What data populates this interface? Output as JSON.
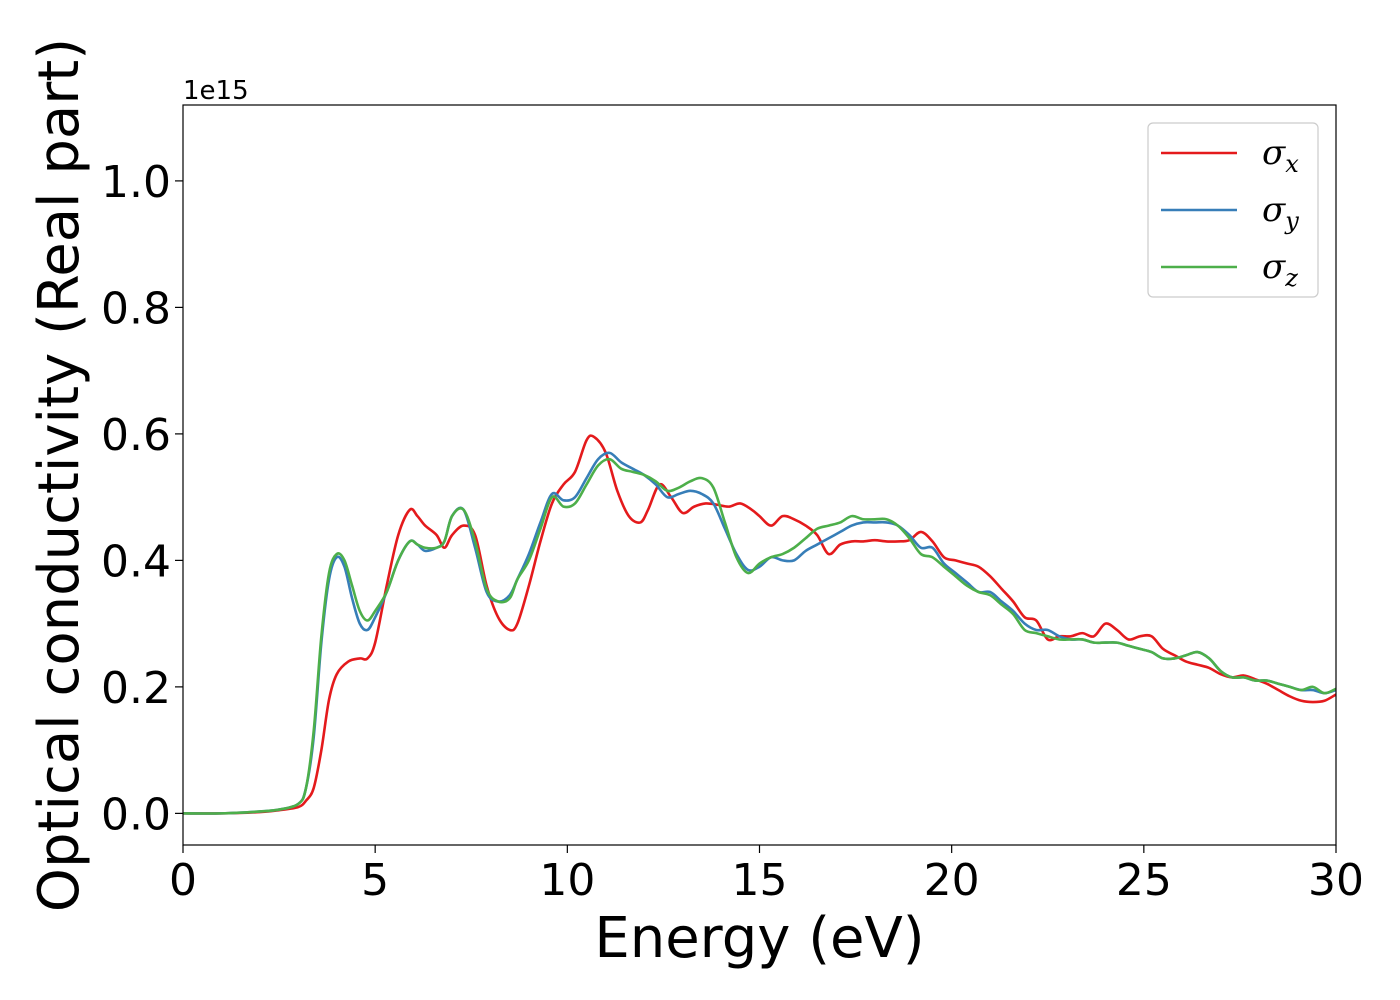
{
  "chart_data": {
    "type": "line",
    "title": "",
    "xlabel": "Energy (eV)",
    "ylabel": "Optical conductivity (Real part)",
    "y_offset_label": "1e15",
    "xlim": [
      0,
      30
    ],
    "ylim": [
      -0.05,
      1.12
    ],
    "xticks": [
      0,
      5,
      10,
      15,
      20,
      25,
      30
    ],
    "yticks": [
      0.0,
      0.2,
      0.4,
      0.6,
      0.8,
      1.0
    ],
    "xtick_labels": [
      "0",
      "5",
      "10",
      "15",
      "20",
      "25",
      "30"
    ],
    "ytick_labels": [
      "0.0",
      "0.2",
      "0.4",
      "0.6",
      "0.8",
      "1.0"
    ],
    "grid": false,
    "legend_position": "top-right",
    "series": [
      {
        "name": "σ",
        "sub": "x",
        "color": "#e41a1c",
        "x": [
          0,
          1,
          2,
          2.5,
          3,
          3.2,
          3.4,
          3.6,
          3.8,
          4.0,
          4.3,
          4.6,
          4.8,
          5.0,
          5.3,
          5.6,
          5.9,
          6.1,
          6.3,
          6.6,
          6.8,
          7.0,
          7.3,
          7.6,
          7.9,
          8.2,
          8.5,
          8.7,
          9.0,
          9.3,
          9.6,
          9.9,
          10.2,
          10.5,
          10.7,
          11.0,
          11.3,
          11.6,
          11.9,
          12.1,
          12.4,
          12.7,
          13.0,
          13.3,
          13.6,
          13.9,
          14.2,
          14.5,
          14.8,
          15.0,
          15.3,
          15.6,
          15.9,
          16.2,
          16.5,
          16.8,
          17.1,
          17.4,
          17.7,
          18.0,
          18.3,
          18.6,
          18.9,
          19.2,
          19.5,
          19.8,
          20.1,
          20.4,
          20.7,
          21.0,
          21.3,
          21.6,
          21.9,
          22.2,
          22.5,
          22.8,
          23.1,
          23.4,
          23.7,
          24.0,
          24.3,
          24.6,
          24.9,
          25.2,
          25.5,
          25.8,
          26.1,
          26.4,
          26.7,
          27.0,
          27.3,
          27.6,
          27.9,
          28.2,
          28.5,
          28.8,
          29.1,
          29.4,
          29.7,
          30.0
        ],
        "y": [
          0.0,
          0.0,
          0.002,
          0.005,
          0.01,
          0.02,
          0.04,
          0.1,
          0.18,
          0.22,
          0.24,
          0.245,
          0.245,
          0.27,
          0.36,
          0.44,
          0.48,
          0.47,
          0.455,
          0.44,
          0.42,
          0.44,
          0.455,
          0.44,
          0.36,
          0.31,
          0.29,
          0.3,
          0.36,
          0.43,
          0.49,
          0.52,
          0.54,
          0.59,
          0.595,
          0.57,
          0.51,
          0.47,
          0.46,
          0.48,
          0.52,
          0.5,
          0.475,
          0.485,
          0.49,
          0.488,
          0.485,
          0.49,
          0.48,
          0.47,
          0.455,
          0.47,
          0.465,
          0.455,
          0.44,
          0.41,
          0.425,
          0.43,
          0.43,
          0.432,
          0.43,
          0.43,
          0.432,
          0.445,
          0.43,
          0.405,
          0.4,
          0.395,
          0.39,
          0.375,
          0.355,
          0.335,
          0.31,
          0.305,
          0.275,
          0.28,
          0.28,
          0.285,
          0.28,
          0.3,
          0.29,
          0.275,
          0.28,
          0.28,
          0.26,
          0.25,
          0.24,
          0.235,
          0.23,
          0.22,
          0.215,
          0.218,
          0.212,
          0.205,
          0.195,
          0.185,
          0.178,
          0.176,
          0.178,
          0.188
        ]
      },
      {
        "name": "σ",
        "sub": "y",
        "color": "#377eb8",
        "x": [
          0,
          1,
          2,
          2.5,
          3,
          3.2,
          3.4,
          3.6,
          3.8,
          4.0,
          4.2,
          4.4,
          4.6,
          4.8,
          5.0,
          5.3,
          5.6,
          5.9,
          6.1,
          6.3,
          6.6,
          6.8,
          7.0,
          7.3,
          7.6,
          7.9,
          8.2,
          8.5,
          8.7,
          9.0,
          9.3,
          9.6,
          9.9,
          10.2,
          10.5,
          10.8,
          11.1,
          11.4,
          11.7,
          12.0,
          12.3,
          12.6,
          12.9,
          13.2,
          13.5,
          13.8,
          14.1,
          14.4,
          14.7,
          15.0,
          15.3,
          15.6,
          15.9,
          16.2,
          16.5,
          16.8,
          17.1,
          17.4,
          17.7,
          18.0,
          18.3,
          18.6,
          18.9,
          19.2,
          19.5,
          19.8,
          20.1,
          20.4,
          20.7,
          21.0,
          21.3,
          21.6,
          21.9,
          22.2,
          22.5,
          22.8,
          23.1,
          23.4,
          23.7,
          24.0,
          24.3,
          24.6,
          24.9,
          25.2,
          25.5,
          25.8,
          26.1,
          26.4,
          26.7,
          27.0,
          27.3,
          27.6,
          27.9,
          28.2,
          28.5,
          28.8,
          29.1,
          29.4,
          29.7,
          30.0
        ],
        "y": [
          0.0,
          0.0,
          0.003,
          0.006,
          0.015,
          0.04,
          0.12,
          0.27,
          0.37,
          0.405,
          0.39,
          0.34,
          0.3,
          0.29,
          0.31,
          0.35,
          0.4,
          0.43,
          0.425,
          0.415,
          0.42,
          0.43,
          0.47,
          0.48,
          0.42,
          0.35,
          0.335,
          0.345,
          0.37,
          0.41,
          0.46,
          0.505,
          0.495,
          0.5,
          0.53,
          0.56,
          0.57,
          0.555,
          0.545,
          0.535,
          0.52,
          0.5,
          0.505,
          0.51,
          0.505,
          0.49,
          0.45,
          0.41,
          0.385,
          0.39,
          0.405,
          0.4,
          0.4,
          0.415,
          0.425,
          0.435,
          0.445,
          0.455,
          0.46,
          0.46,
          0.46,
          0.455,
          0.44,
          0.42,
          0.42,
          0.395,
          0.38,
          0.365,
          0.35,
          0.35,
          0.335,
          0.32,
          0.3,
          0.29,
          0.29,
          0.28,
          0.275,
          0.275,
          0.27,
          0.27,
          0.27,
          0.265,
          0.26,
          0.255,
          0.245,
          0.245,
          0.25,
          0.255,
          0.245,
          0.225,
          0.215,
          0.215,
          0.21,
          0.21,
          0.205,
          0.2,
          0.195,
          0.195,
          0.19,
          0.195
        ]
      },
      {
        "name": "σ",
        "sub": "z",
        "color": "#4daf4a",
        "x": [
          0,
          1,
          2,
          2.5,
          3,
          3.2,
          3.4,
          3.6,
          3.8,
          4.0,
          4.2,
          4.4,
          4.6,
          4.8,
          5.0,
          5.3,
          5.6,
          5.9,
          6.1,
          6.3,
          6.6,
          6.8,
          7.0,
          7.3,
          7.6,
          7.9,
          8.2,
          8.5,
          8.7,
          9.0,
          9.3,
          9.6,
          9.9,
          10.2,
          10.5,
          10.8,
          11.1,
          11.4,
          11.7,
          12.0,
          12.3,
          12.6,
          12.9,
          13.2,
          13.5,
          13.8,
          14.1,
          14.4,
          14.7,
          15.0,
          15.3,
          15.6,
          15.9,
          16.2,
          16.5,
          16.8,
          17.1,
          17.4,
          17.7,
          18.0,
          18.3,
          18.6,
          18.9,
          19.2,
          19.5,
          19.8,
          20.1,
          20.4,
          20.7,
          21.0,
          21.3,
          21.6,
          21.9,
          22.2,
          22.5,
          22.8,
          23.1,
          23.4,
          23.7,
          24.0,
          24.3,
          24.6,
          24.9,
          25.2,
          25.5,
          25.8,
          26.1,
          26.4,
          26.7,
          27.0,
          27.3,
          27.6,
          27.9,
          28.2,
          28.5,
          28.8,
          29.1,
          29.4,
          29.7,
          30.0
        ],
        "y": [
          0.0,
          0.0,
          0.003,
          0.006,
          0.015,
          0.04,
          0.13,
          0.28,
          0.38,
          0.41,
          0.4,
          0.36,
          0.32,
          0.305,
          0.32,
          0.35,
          0.4,
          0.43,
          0.425,
          0.42,
          0.42,
          0.43,
          0.47,
          0.48,
          0.43,
          0.355,
          0.335,
          0.34,
          0.37,
          0.4,
          0.45,
          0.5,
          0.485,
          0.49,
          0.52,
          0.55,
          0.56,
          0.545,
          0.54,
          0.535,
          0.525,
          0.51,
          0.515,
          0.525,
          0.53,
          0.515,
          0.46,
          0.405,
          0.38,
          0.395,
          0.405,
          0.41,
          0.42,
          0.435,
          0.45,
          0.455,
          0.46,
          0.47,
          0.465,
          0.465,
          0.465,
          0.455,
          0.435,
          0.41,
          0.405,
          0.39,
          0.375,
          0.36,
          0.35,
          0.345,
          0.33,
          0.315,
          0.29,
          0.285,
          0.28,
          0.275,
          0.275,
          0.275,
          0.27,
          0.27,
          0.27,
          0.265,
          0.26,
          0.255,
          0.245,
          0.245,
          0.25,
          0.255,
          0.245,
          0.225,
          0.215,
          0.215,
          0.21,
          0.21,
          0.205,
          0.2,
          0.195,
          0.2,
          0.19,
          0.197
        ]
      }
    ]
  }
}
